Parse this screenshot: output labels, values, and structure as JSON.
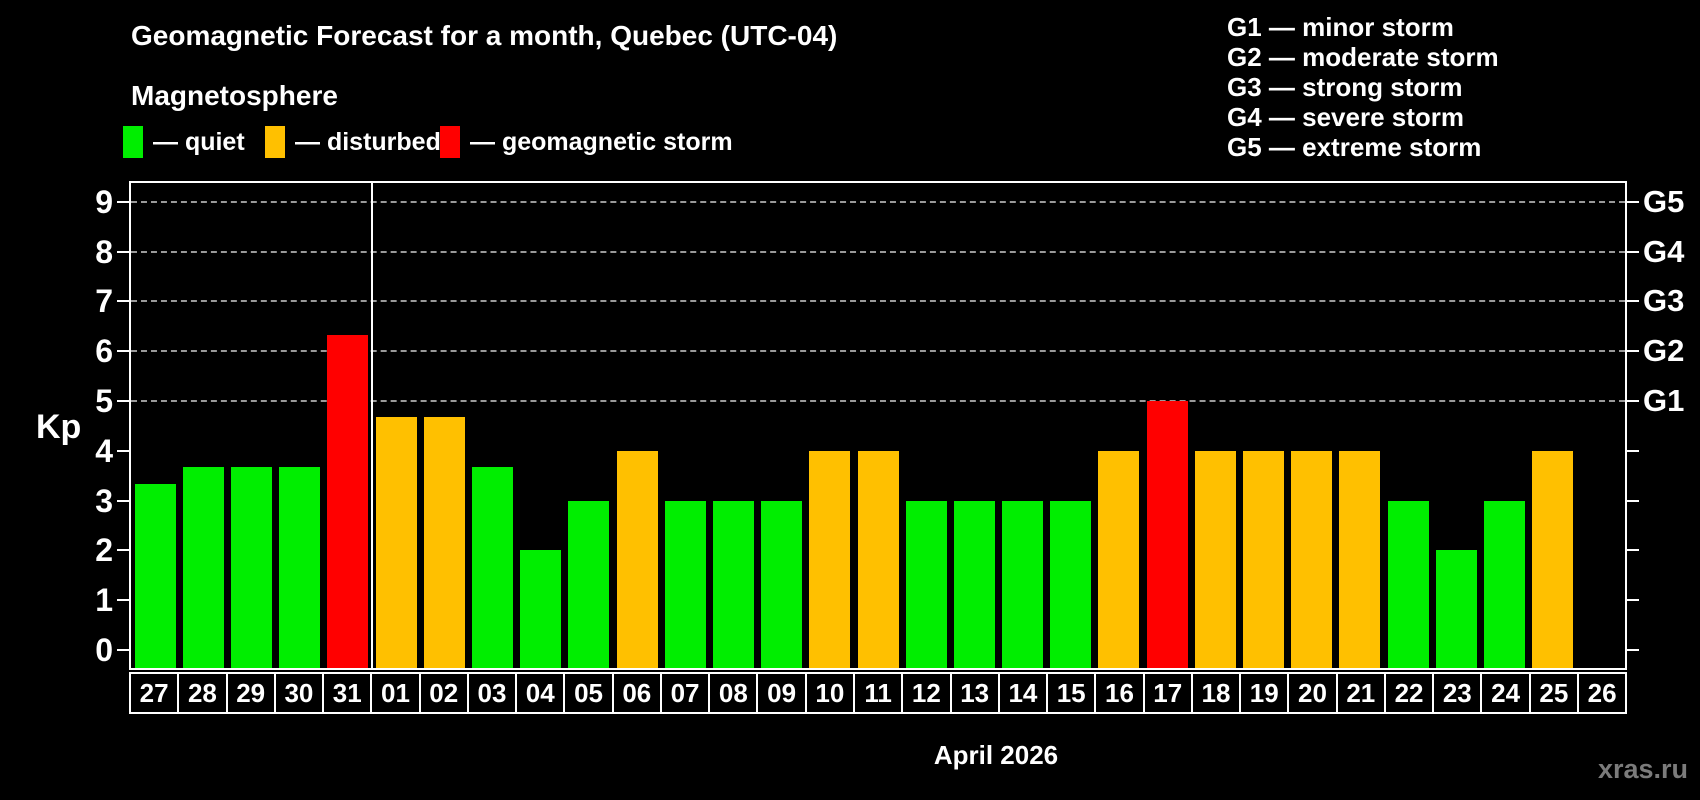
{
  "header": {
    "title": "Geomagnetic Forecast for a month, Quebec (UTC-04)",
    "subtitle": "Magnetosphere"
  },
  "legend": {
    "items": [
      {
        "key": "quiet",
        "label": "— quiet",
        "color": "#00ee00"
      },
      {
        "key": "disturbed",
        "label": "— disturbed",
        "color": "#ffc000"
      },
      {
        "key": "storm",
        "label": "— geomagnetic storm",
        "color": "#ff0000"
      }
    ]
  },
  "g_legend": {
    "items": [
      "G1 — minor storm",
      "G2 — moderate storm",
      "G3 — strong storm",
      "G4 — severe storm",
      "G5 — extreme storm"
    ]
  },
  "axes": {
    "y_label": "Kp",
    "y_ticks": [
      0,
      1,
      2,
      3,
      4,
      5,
      6,
      7,
      8,
      9
    ],
    "right_scale": [
      {
        "kp": 5,
        "label": "G1"
      },
      {
        "kp": 6,
        "label": "G2"
      },
      {
        "kp": 7,
        "label": "G3"
      },
      {
        "kp": 8,
        "label": "G4"
      },
      {
        "kp": 9,
        "label": "G5"
      }
    ],
    "x_title": "April 2026"
  },
  "footer": {
    "watermark": "xras.ru"
  },
  "chart_data": {
    "type": "bar",
    "title": "Geomagnetic Forecast for a month, Quebec (UTC-04)",
    "subtitle": "Magnetosphere",
    "xlabel": "April 2026",
    "ylabel": "Kp",
    "ylim": [
      0,
      9
    ],
    "grid": "dashed horizontal at Kp 5-9 only",
    "gridlines_at": [
      5,
      6,
      7,
      8,
      9
    ],
    "legend_position": "top-left",
    "month_separator_after_index": 4,
    "categories": [
      "27",
      "28",
      "29",
      "30",
      "31",
      "01",
      "02",
      "03",
      "04",
      "05",
      "06",
      "07",
      "08",
      "09",
      "10",
      "11",
      "12",
      "13",
      "14",
      "15",
      "16",
      "17",
      "18",
      "19",
      "20",
      "21",
      "22",
      "23",
      "24",
      "25",
      "26"
    ],
    "values": [
      3.33,
      3.67,
      3.67,
      3.67,
      6.33,
      4.67,
      4.67,
      3.67,
      2,
      3,
      4,
      3,
      3,
      3,
      4,
      4,
      3,
      3,
      3,
      3,
      4,
      5,
      4,
      4,
      4,
      4,
      3,
      2,
      3,
      4,
      null
    ],
    "statuses": [
      "quiet",
      "quiet",
      "quiet",
      "quiet",
      "storm",
      "disturbed",
      "disturbed",
      "quiet",
      "quiet",
      "quiet",
      "disturbed",
      "quiet",
      "quiet",
      "quiet",
      "disturbed",
      "disturbed",
      "quiet",
      "quiet",
      "quiet",
      "quiet",
      "disturbed",
      "storm",
      "disturbed",
      "disturbed",
      "disturbed",
      "disturbed",
      "quiet",
      "quiet",
      "quiet",
      "disturbed",
      null
    ],
    "colors": {
      "quiet": "#00ee00",
      "disturbed": "#ffc000",
      "storm": "#ff0000"
    }
  }
}
